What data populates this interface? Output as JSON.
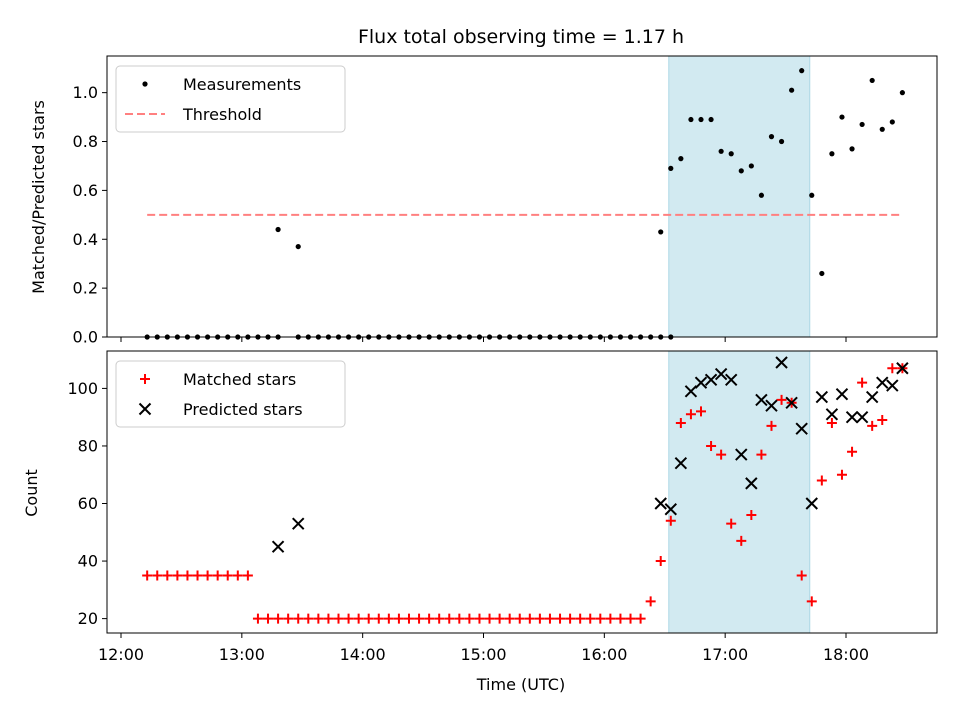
{
  "chart_data": [
    {
      "type": "scatter",
      "title": "Flux total observing time = 1.17 h",
      "xlabel": "",
      "ylabel": "Matched/Predicted stars",
      "ylim": [
        0,
        1.15
      ],
      "yticks": [
        "0.0",
        "0.2",
        "0.4",
        "0.6",
        "0.8",
        "1.0"
      ],
      "grid": false,
      "legend_position": "top-left",
      "highlight_span": [
        "16:32",
        "17:42"
      ],
      "highlight_color": "#add8e6",
      "series": [
        {
          "name": "Measurements",
          "marker": "dot",
          "color": "#000000",
          "x": [
            "12:13",
            "12:18",
            "12:23",
            "12:28",
            "12:33",
            "12:38",
            "12:43",
            "12:48",
            "12:53",
            "12:58",
            "13:03",
            "13:08",
            "13:13",
            "13:18",
            "13:28",
            "13:33",
            "13:38",
            "13:43",
            "13:48",
            "13:53",
            "13:58",
            "14:03",
            "14:08",
            "14:13",
            "14:18",
            "14:23",
            "14:28",
            "14:33",
            "14:38",
            "14:43",
            "14:48",
            "14:53",
            "14:58",
            "15:03",
            "15:08",
            "15:13",
            "15:18",
            "15:23",
            "15:28",
            "15:33",
            "15:38",
            "15:43",
            "15:48",
            "15:53",
            "15:58",
            "16:03",
            "16:08",
            "16:13",
            "16:18",
            "16:23",
            "16:28",
            "16:33",
            "13:18",
            "13:28",
            "16:28",
            "16:33",
            "16:38",
            "16:43",
            "16:48",
            "16:53",
            "16:58",
            "17:03",
            "17:08",
            "17:13",
            "17:18",
            "17:23",
            "17:28",
            "17:33",
            "17:38",
            "17:43",
            "17:48",
            "17:53",
            "17:58",
            "18:03",
            "18:08",
            "18:13",
            "18:18",
            "18:23",
            "18:28"
          ],
          "y": [
            0,
            0,
            0,
            0,
            0,
            0,
            0,
            0,
            0,
            0,
            0,
            0,
            0,
            0,
            0,
            0,
            0,
            0,
            0,
            0,
            0,
            0,
            0,
            0,
            0,
            0,
            0,
            0,
            0,
            0,
            0,
            0,
            0,
            0,
            0,
            0,
            0,
            0,
            0,
            0,
            0,
            0,
            0,
            0,
            0,
            0,
            0,
            0,
            0,
            0,
            0,
            0,
            0.44,
            0.37,
            0.43,
            0.69,
            0.73,
            0.89,
            0.89,
            0.89,
            0.76,
            0.75,
            0.68,
            0.7,
            0.58,
            0.82,
            0.8,
            1.01,
            1.09,
            0.58,
            0.26,
            0.75,
            0.9,
            0.77,
            0.87,
            1.05,
            0.85,
            0.88,
            1.0
          ]
        },
        {
          "name": "Threshold",
          "marker": "dashed-line",
          "color": "#ff8080",
          "x": [
            "12:13",
            "18:28"
          ],
          "y": [
            0.5,
            0.5
          ]
        }
      ]
    },
    {
      "type": "scatter",
      "title": "",
      "xlabel": "Time (UTC)",
      "ylabel": "Count",
      "xticks": [
        "12:00",
        "13:00",
        "14:00",
        "15:00",
        "16:00",
        "17:00",
        "18:00"
      ],
      "ylim": [
        15,
        113
      ],
      "yticks": [
        "20",
        "40",
        "60",
        "80",
        "100"
      ],
      "grid": false,
      "legend_position": "top-left",
      "highlight_span": [
        "16:32",
        "17:42"
      ],
      "highlight_color": "#add8e6",
      "series": [
        {
          "name": "Matched stars",
          "marker": "plus",
          "color": "#ff0000",
          "x": [
            "12:13",
            "12:18",
            "12:23",
            "12:28",
            "12:33",
            "12:38",
            "12:43",
            "12:48",
            "12:53",
            "12:58",
            "13:03",
            "13:08",
            "13:13",
            "13:18",
            "13:23",
            "13:28",
            "13:33",
            "13:38",
            "13:43",
            "13:48",
            "13:53",
            "13:58",
            "14:03",
            "14:08",
            "14:13",
            "14:18",
            "14:23",
            "14:28",
            "14:33",
            "14:38",
            "14:43",
            "14:48",
            "14:53",
            "14:58",
            "15:03",
            "15:08",
            "15:13",
            "15:18",
            "15:23",
            "15:28",
            "15:33",
            "15:38",
            "15:43",
            "15:48",
            "15:53",
            "15:58",
            "16:03",
            "16:08",
            "16:13",
            "16:18",
            "16:23",
            "16:28",
            "16:33",
            "16:38",
            "16:43",
            "16:48",
            "16:53",
            "16:58",
            "17:03",
            "17:08",
            "17:13",
            "17:18",
            "17:23",
            "17:28",
            "17:33",
            "17:38",
            "17:43",
            "17:48",
            "17:53",
            "17:58",
            "18:03",
            "18:08",
            "18:13",
            "18:18",
            "18:23",
            "18:28"
          ],
          "y": [
            35,
            35,
            35,
            35,
            35,
            35,
            35,
            35,
            35,
            35,
            35,
            20,
            20,
            20,
            20,
            20,
            20,
            20,
            20,
            20,
            20,
            20,
            20,
            20,
            20,
            20,
            20,
            20,
            20,
            20,
            20,
            20,
            20,
            20,
            20,
            20,
            20,
            20,
            20,
            20,
            20,
            20,
            20,
            20,
            20,
            20,
            20,
            20,
            20,
            20,
            26,
            40,
            54,
            88,
            91,
            92,
            80,
            77,
            53,
            47,
            56,
            77,
            87,
            96,
            95,
            35,
            26,
            68,
            88,
            70,
            78,
            102,
            87,
            89,
            107,
            107
          ]
        },
        {
          "name": "Predicted stars",
          "marker": "x",
          "color": "#000000",
          "x": [
            "13:18",
            "13:28",
            "16:28",
            "16:33",
            "16:38",
            "16:43",
            "16:48",
            "16:53",
            "16:58",
            "17:03",
            "17:08",
            "17:13",
            "17:18",
            "17:23",
            "17:28",
            "17:33",
            "17:38",
            "17:43",
            "17:48",
            "17:53",
            "17:58",
            "18:03",
            "18:08",
            "18:13",
            "18:18",
            "18:23",
            "18:28"
          ],
          "y": [
            45,
            53,
            60,
            58,
            74,
            99,
            102,
            103,
            105,
            103,
            77,
            67,
            96,
            94,
            109,
            95,
            86,
            60,
            97,
            91,
            98,
            90,
            90,
            97,
            102,
            101,
            107
          ]
        }
      ]
    }
  ]
}
